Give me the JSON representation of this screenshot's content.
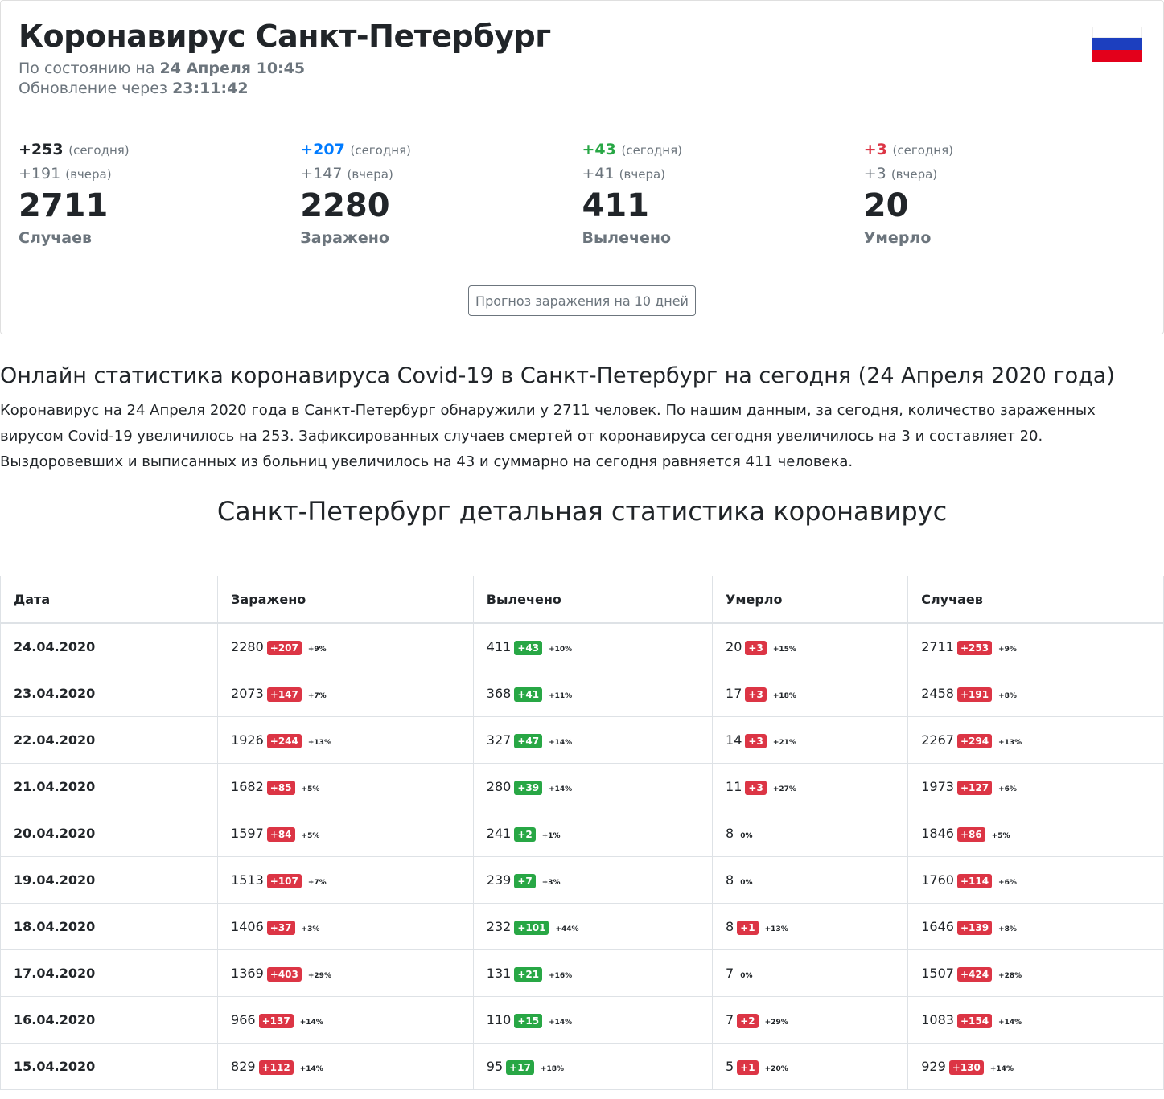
{
  "header": {
    "title": "Коронавирус Санкт-Петербург",
    "status_label": "По состоянию на",
    "status_value": "24 Апреля 10:45",
    "update_label": "Обновление через",
    "update_value": "23:11:42"
  },
  "stats": [
    {
      "today": "+253",
      "today_label": "(сегодня)",
      "yesterday": "+191",
      "yesterday_label": "(вчера)",
      "total": "2711",
      "label": "Случаев"
    },
    {
      "today": "+207",
      "today_label": "(сегодня)",
      "yesterday": "+147",
      "yesterday_label": "(вчера)",
      "total": "2280",
      "label": "Заражено"
    },
    {
      "today": "+43",
      "today_label": "(сегодня)",
      "yesterday": "+41",
      "yesterday_label": "(вчера)",
      "total": "411",
      "label": "Вылечено"
    },
    {
      "today": "+3",
      "today_label": "(сегодня)",
      "yesterday": "+3",
      "yesterday_label": "(вчера)",
      "total": "20",
      "label": "Умерло"
    }
  ],
  "forecast_button": "Прогноз заражения на 10 дней",
  "article": {
    "heading": "Онлайн статистика коронавируса Covid-19 в Санкт-Петербург на сегодня (24 Апреля 2020 года)",
    "text": "Коронавирус на 24 Апреля 2020 года в Санкт-Петербург обнаружили у 2711 человек. По нашим данным, за сегодня, количество зараженных вирусом Covid-19 увеличилось на 253. Зафиксированных случаев смертей от коронавируса сегодня увеличилось на 3 и составляет 20. Выздоровевших и выписанных из больниц увеличилось на 43 и суммарно на сегодня равняется 411 человека."
  },
  "table": {
    "heading": "Санкт-Петербург детальная статистика коронавирус",
    "columns": [
      "Дата",
      "Заражено",
      "Вылечено",
      "Умерло",
      "Случаев"
    ],
    "rows": [
      {
        "date": "24.04.2020",
        "cells": [
          {
            "value": "2280",
            "delta": "+207",
            "pct": "+9%"
          },
          {
            "value": "411",
            "delta": "+43",
            "pct": "+10%"
          },
          {
            "value": "20",
            "delta": "+3",
            "pct": "+15%"
          },
          {
            "value": "2711",
            "delta": "+253",
            "pct": "+9%"
          }
        ]
      },
      {
        "date": "23.04.2020",
        "cells": [
          {
            "value": "2073",
            "delta": "+147",
            "pct": "+7%"
          },
          {
            "value": "368",
            "delta": "+41",
            "pct": "+11%"
          },
          {
            "value": "17",
            "delta": "+3",
            "pct": "+18%"
          },
          {
            "value": "2458",
            "delta": "+191",
            "pct": "+8%"
          }
        ]
      },
      {
        "date": "22.04.2020",
        "cells": [
          {
            "value": "1926",
            "delta": "+244",
            "pct": "+13%"
          },
          {
            "value": "327",
            "delta": "+47",
            "pct": "+14%"
          },
          {
            "value": "14",
            "delta": "+3",
            "pct": "+21%"
          },
          {
            "value": "2267",
            "delta": "+294",
            "pct": "+13%"
          }
        ]
      },
      {
        "date": "21.04.2020",
        "cells": [
          {
            "value": "1682",
            "delta": "+85",
            "pct": "+5%"
          },
          {
            "value": "280",
            "delta": "+39",
            "pct": "+14%"
          },
          {
            "value": "11",
            "delta": "+3",
            "pct": "+27%"
          },
          {
            "value": "1973",
            "delta": "+127",
            "pct": "+6%"
          }
        ]
      },
      {
        "date": "20.04.2020",
        "cells": [
          {
            "value": "1597",
            "delta": "+84",
            "pct": "+5%"
          },
          {
            "value": "241",
            "delta": "+2",
            "pct": "+1%"
          },
          {
            "value": "8",
            "pct": "0%"
          },
          {
            "value": "1846",
            "delta": "+86",
            "pct": "+5%"
          }
        ]
      },
      {
        "date": "19.04.2020",
        "cells": [
          {
            "value": "1513",
            "delta": "+107",
            "pct": "+7%"
          },
          {
            "value": "239",
            "delta": "+7",
            "pct": "+3%"
          },
          {
            "value": "8",
            "pct": "0%"
          },
          {
            "value": "1760",
            "delta": "+114",
            "pct": "+6%"
          }
        ]
      },
      {
        "date": "18.04.2020",
        "cells": [
          {
            "value": "1406",
            "delta": "+37",
            "pct": "+3%"
          },
          {
            "value": "232",
            "delta": "+101",
            "pct": "+44%"
          },
          {
            "value": "8",
            "delta": "+1",
            "pct": "+13%"
          },
          {
            "value": "1646",
            "delta": "+139",
            "pct": "+8%"
          }
        ]
      },
      {
        "date": "17.04.2020",
        "cells": [
          {
            "value": "1369",
            "delta": "+403",
            "pct": "+29%"
          },
          {
            "value": "131",
            "delta": "+21",
            "pct": "+16%"
          },
          {
            "value": "7",
            "pct": "0%"
          },
          {
            "value": "1507",
            "delta": "+424",
            "pct": "+28%"
          }
        ]
      },
      {
        "date": "16.04.2020",
        "cells": [
          {
            "value": "966",
            "delta": "+137",
            "pct": "+14%"
          },
          {
            "value": "110",
            "delta": "+15",
            "pct": "+14%"
          },
          {
            "value": "7",
            "delta": "+2",
            "pct": "+29%"
          },
          {
            "value": "1083",
            "delta": "+154",
            "pct": "+14%"
          }
        ]
      },
      {
        "date": "15.04.2020",
        "cells": [
          {
            "value": "829",
            "delta": "+112",
            "pct": "+14%"
          },
          {
            "value": "95",
            "delta": "+17",
            "pct": "+18%"
          },
          {
            "value": "5",
            "delta": "+1",
            "pct": "+20%"
          },
          {
            "value": "929",
            "delta": "+130",
            "pct": "+14%"
          }
        ]
      }
    ]
  }
}
